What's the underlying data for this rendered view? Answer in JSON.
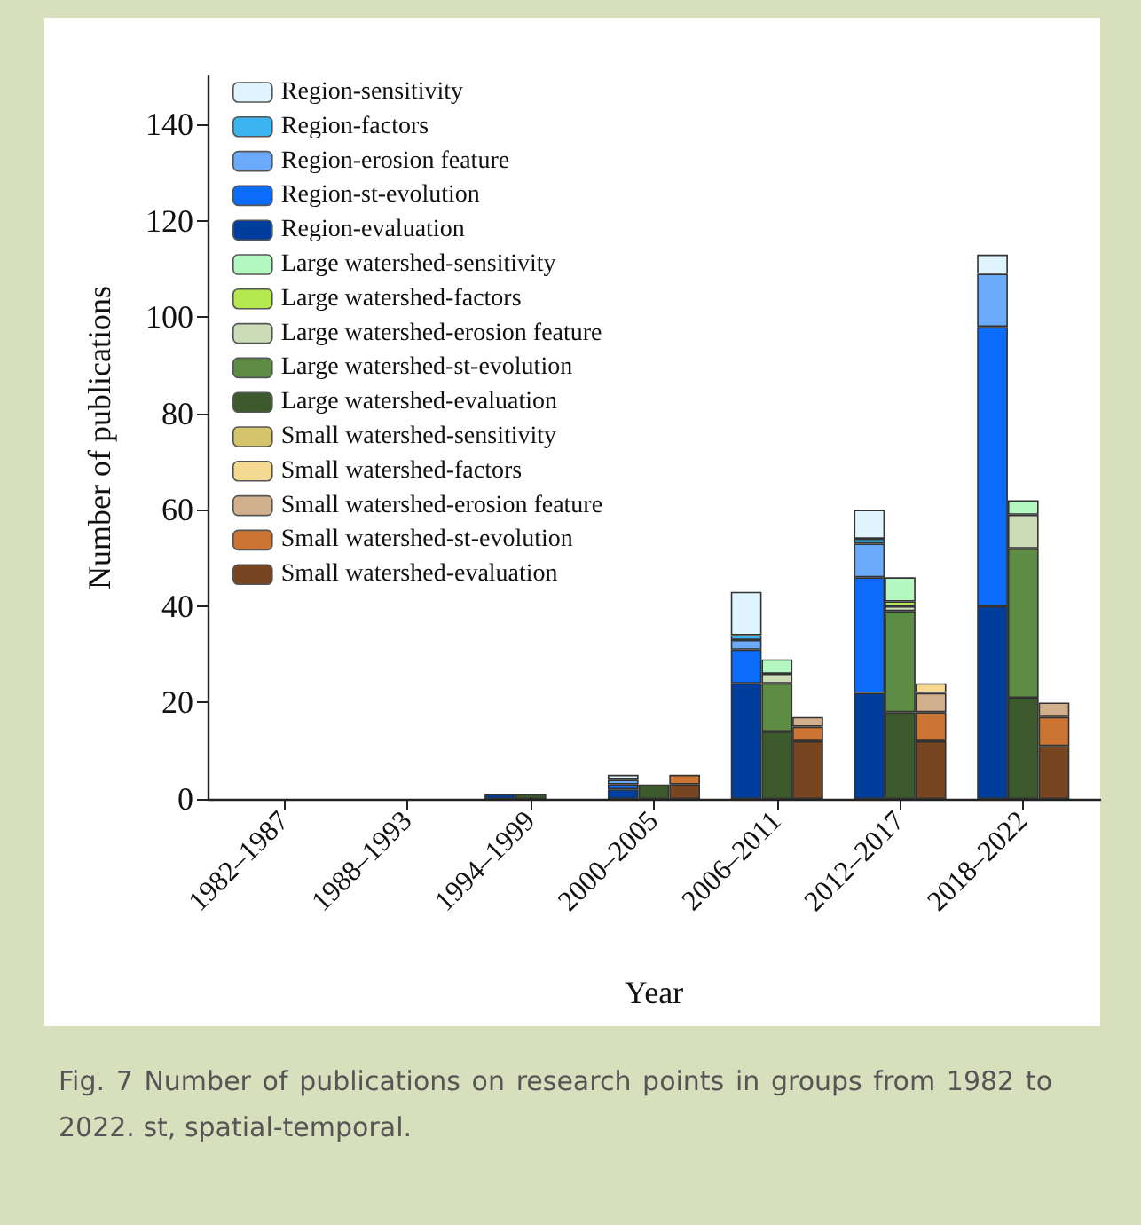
{
  "chart_data": {
    "type": "bar",
    "stacked": true,
    "xlabel": "Year",
    "ylabel": "Number of publications",
    "categories": [
      null,
      null,
      "1982–1987",
      null,
      null,
      null,
      "1988–1993",
      null,
      null,
      null,
      "1994–1999",
      null,
      null,
      null,
      "2000–2005",
      null,
      null,
      null,
      "2006–2011",
      null,
      null,
      null,
      "2012–2017",
      null,
      null,
      null,
      "2018–2022",
      null,
      null
    ],
    "ylim": [
      0,
      150
    ],
    "yticks": [
      0,
      20,
      40,
      60,
      80,
      100,
      120,
      140
    ],
    "grid": false,
    "legend": "top left",
    "annotations": [
      "Fig. 7   Number of publications on research points in groups from 1982 to 2022. st, spatial-temporal."
    ],
    "series": [
      {
        "name": "Region-evaluation",
        "color": "#003e9e",
        "values": [
          null,
          0,
          null,
          null,
          null,
          0,
          null,
          null,
          null,
          1,
          null,
          null,
          null,
          2,
          null,
          null,
          null,
          24,
          null,
          null,
          null,
          22,
          null,
          null,
          null,
          40,
          null,
          null,
          null
        ]
      },
      {
        "name": "Region-st-evolution",
        "color": "#0a6cf8",
        "values": [
          null,
          0,
          null,
          null,
          null,
          0,
          null,
          null,
          null,
          0,
          null,
          null,
          null,
          1,
          null,
          null,
          null,
          7,
          null,
          null,
          null,
          24,
          null,
          null,
          null,
          58,
          null,
          null,
          null
        ]
      },
      {
        "name": "Region-erosion feature",
        "color": "#6aaaf8",
        "values": [
          null,
          0,
          null,
          null,
          null,
          0,
          null,
          null,
          null,
          0,
          null,
          null,
          null,
          1,
          null,
          null,
          null,
          2,
          null,
          null,
          null,
          7,
          null,
          null,
          null,
          11,
          null,
          null,
          null
        ]
      },
      {
        "name": "Region-factors",
        "color": "#3cb4f0",
        "values": [
          null,
          0,
          null,
          null,
          null,
          0,
          null,
          null,
          null,
          0,
          null,
          null,
          null,
          0,
          null,
          null,
          null,
          1,
          null,
          null,
          null,
          1,
          null,
          null,
          null,
          0,
          null,
          null,
          null
        ]
      },
      {
        "name": "Region-sensitivity",
        "color": "#e0f4fd",
        "values": [
          null,
          0,
          null,
          null,
          null,
          0,
          null,
          null,
          null,
          0,
          null,
          null,
          null,
          1,
          null,
          null,
          null,
          9,
          null,
          null,
          null,
          6,
          null,
          null,
          null,
          4,
          null,
          null,
          null
        ]
      },
      {
        "name": "Large watershed-evaluation",
        "color": "#3c5a2c",
        "values": [
          null,
          null,
          0,
          null,
          null,
          null,
          0,
          null,
          null,
          null,
          1,
          null,
          null,
          null,
          3,
          null,
          null,
          null,
          14,
          null,
          null,
          null,
          18,
          null,
          null,
          null,
          21,
          null,
          null
        ]
      },
      {
        "name": "Large watershed-st-evolution",
        "color": "#5d8d44",
        "values": [
          null,
          null,
          0,
          null,
          null,
          null,
          0,
          null,
          null,
          null,
          0,
          null,
          null,
          null,
          0,
          null,
          null,
          null,
          10,
          null,
          null,
          null,
          21,
          null,
          null,
          null,
          31,
          null,
          null
        ]
      },
      {
        "name": "Large watershed-erosion feature",
        "color": "#cbdcb8",
        "values": [
          null,
          null,
          0,
          null,
          null,
          null,
          0,
          null,
          null,
          null,
          0,
          null,
          null,
          null,
          0,
          null,
          null,
          null,
          2,
          null,
          null,
          null,
          1,
          null,
          null,
          null,
          7,
          null,
          null
        ]
      },
      {
        "name": "Large watershed-factors",
        "color": "#b3e84f",
        "values": [
          null,
          null,
          0,
          null,
          null,
          null,
          0,
          null,
          null,
          null,
          0,
          null,
          null,
          null,
          0,
          null,
          null,
          null,
          0,
          null,
          null,
          null,
          1,
          null,
          null,
          null,
          0,
          null,
          null
        ]
      },
      {
        "name": "Large watershed-sensitivity",
        "color": "#b5f7c0",
        "values": [
          null,
          null,
          0,
          null,
          null,
          null,
          0,
          null,
          null,
          null,
          0,
          null,
          null,
          null,
          0,
          null,
          null,
          null,
          3,
          null,
          null,
          null,
          5,
          null,
          null,
          null,
          3,
          null,
          null
        ]
      },
      {
        "name": "Small watershed-evaluation",
        "color": "#774520",
        "values": [
          null,
          null,
          null,
          0,
          null,
          null,
          null,
          0,
          null,
          null,
          null,
          0,
          null,
          null,
          null,
          3,
          null,
          null,
          null,
          12,
          null,
          null,
          null,
          12,
          null,
          null,
          null,
          11,
          null
        ]
      },
      {
        "name": "Small watershed-st-evolution",
        "color": "#cc7533",
        "values": [
          null,
          null,
          null,
          0,
          null,
          null,
          null,
          0,
          null,
          null,
          null,
          0,
          null,
          null,
          null,
          2,
          null,
          null,
          null,
          3,
          null,
          null,
          null,
          6,
          null,
          null,
          null,
          6,
          null
        ]
      },
      {
        "name": "Small watershed-erosion feature",
        "color": "#d2b08e",
        "values": [
          null,
          null,
          null,
          0,
          null,
          null,
          null,
          0,
          null,
          null,
          null,
          0,
          null,
          null,
          null,
          0,
          null,
          null,
          null,
          2,
          null,
          null,
          null,
          4,
          null,
          null,
          null,
          3,
          null
        ]
      },
      {
        "name": "Small watershed-factors",
        "color": "#f5d990",
        "values": [
          null,
          null,
          null,
          0,
          null,
          null,
          null,
          0,
          null,
          null,
          null,
          0,
          null,
          null,
          null,
          0,
          null,
          null,
          null,
          0,
          null,
          null,
          null,
          2,
          null,
          null,
          null,
          0,
          null
        ]
      },
      {
        "name": "Small watershed-sensitivity",
        "color": "#d4c56a",
        "values": [
          null,
          null,
          null,
          0,
          null,
          null,
          null,
          0,
          null,
          null,
          null,
          0,
          null,
          null,
          null,
          0,
          null,
          null,
          null,
          0,
          null,
          null,
          null,
          0,
          null,
          null,
          null,
          0,
          null
        ]
      }
    ]
  }
}
